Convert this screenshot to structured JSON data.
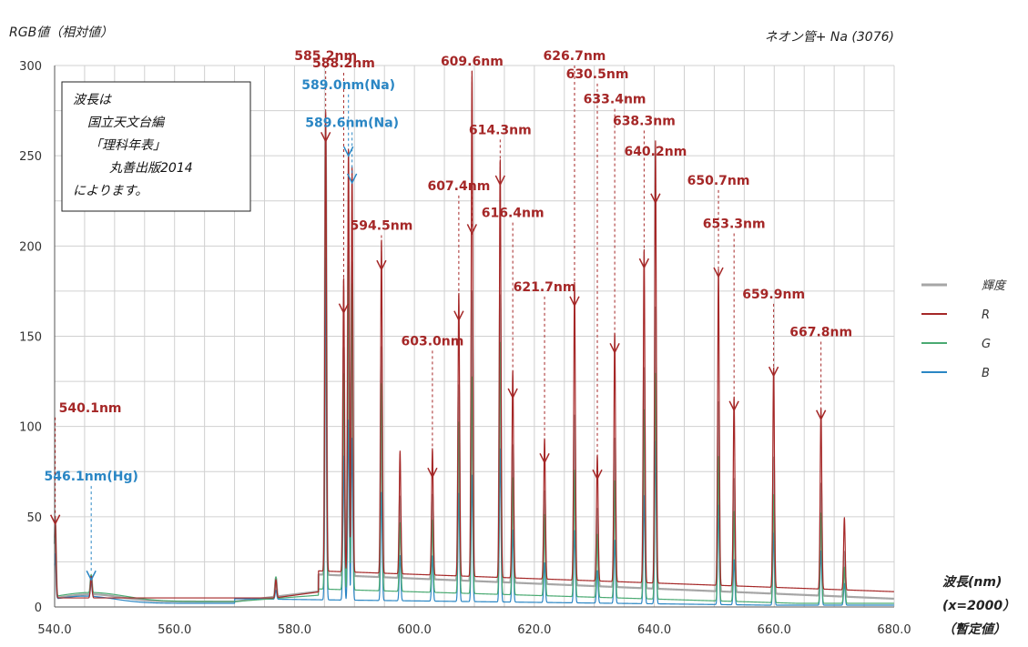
{
  "chart_data": {
    "type": "line",
    "y_title": "RGB値（相対値）",
    "top_right": "ネオン管+ Na (3076)",
    "xlabel": [
      "波長(nm)",
      "(x=2000）",
      "（暫定値）"
    ],
    "xlim": [
      540,
      680
    ],
    "ylim": [
      0,
      300
    ],
    "x_ticks": [
      "540.0",
      "560.0",
      "580.0",
      "600.0",
      "620.0",
      "640.0",
      "660.0",
      "680.0"
    ],
    "y_ticks": [
      "0",
      "50",
      "100",
      "150",
      "200",
      "250",
      "300"
    ],
    "grid": true,
    "legend_position": "right",
    "note": [
      "波長は",
      "国立天文台編",
      "「理科年表」",
      "丸善出版2014",
      "によります。"
    ],
    "series": [
      {
        "name": "輝度",
        "color": "#a6a6a6"
      },
      {
        "name": "R",
        "color": "#a52727"
      },
      {
        "name": "G",
        "color": "#4aaa72"
      },
      {
        "name": "B",
        "color": "#2a86c4"
      }
    ],
    "peaks": [
      {
        "x": 540.1,
        "R": 45,
        "G": 42,
        "B": 25
      },
      {
        "x": 546.1,
        "R": 12,
        "G": 10,
        "B": 8
      },
      {
        "x": 576.9,
        "R": 10,
        "G": 12,
        "B": 5
      },
      {
        "x": 585.2,
        "R": 255,
        "G": 250,
        "B": 190
      },
      {
        "x": 588.2,
        "R": 163,
        "G": 120,
        "B": 80
      },
      {
        "x": 589.0,
        "R": 235,
        "G": 180,
        "B": 100
      },
      {
        "x": 589.6,
        "R": 225,
        "G": 170,
        "B": 90
      },
      {
        "x": 594.5,
        "R": 185,
        "G": 115,
        "B": 60
      },
      {
        "x": 597.6,
        "R": 68,
        "G": 38,
        "B": 25
      },
      {
        "x": 603.0,
        "R": 70,
        "G": 40,
        "B": 25
      },
      {
        "x": 607.4,
        "R": 157,
        "G": 95,
        "B": 60
      },
      {
        "x": 609.6,
        "R": 280,
        "G": 120,
        "B": 70
      },
      {
        "x": 614.3,
        "R": 232,
        "G": 140,
        "B": 85
      },
      {
        "x": 616.4,
        "R": 115,
        "G": 65,
        "B": 40
      },
      {
        "x": 621.7,
        "R": 78,
        "G": 45,
        "B": 22
      },
      {
        "x": 626.7,
        "R": 165,
        "G": 70,
        "B": 40
      },
      {
        "x": 630.5,
        "R": 70,
        "G": 35,
        "B": 18
      },
      {
        "x": 633.4,
        "R": 138,
        "G": 65,
        "B": 35
      },
      {
        "x": 638.3,
        "R": 185,
        "G": 105,
        "B": 60
      },
      {
        "x": 640.2,
        "R": 245,
        "G": 125,
        "B": 90
      },
      {
        "x": 650.7,
        "R": 175,
        "G": 80,
        "B": 55
      },
      {
        "x": 653.3,
        "R": 105,
        "G": 50,
        "B": 25
      },
      {
        "x": 659.9,
        "R": 122,
        "G": 60,
        "B": 40
      },
      {
        "x": 667.8,
        "R": 100,
        "G": 50,
        "B": 30
      },
      {
        "x": 671.7,
        "R": 40,
        "G": 20,
        "B": 12
      }
    ],
    "annotations": [
      {
        "text": "540.1nm",
        "x": 540.1,
        "label_y": 108,
        "tip_y": 46,
        "color": "red"
      },
      {
        "text": "546.1nm(Hg)",
        "x": 546.1,
        "label_y": 70,
        "tip_y": 15,
        "color": "blue"
      },
      {
        "text": "585.2nm",
        "x": 585.2,
        "label_y": 303,
        "tip_y": 258,
        "color": "red"
      },
      {
        "text": "588.2nm",
        "x": 588.2,
        "label_y": 299,
        "tip_y": 163,
        "color": "red"
      },
      {
        "text": "589.0nm(Na)",
        "x": 589.0,
        "label_y": 287,
        "tip_y": 250,
        "color": "blue"
      },
      {
        "text": "589.6nm(Na)",
        "x": 589.6,
        "label_y": 266,
        "tip_y": 235,
        "color": "blue"
      },
      {
        "text": "594.5nm",
        "x": 594.5,
        "label_y": 209,
        "tip_y": 187,
        "color": "red"
      },
      {
        "text": "603.0nm",
        "x": 603.0,
        "label_y": 145,
        "tip_y": 72,
        "color": "red"
      },
      {
        "text": "607.4nm",
        "x": 607.4,
        "label_y": 231,
        "tip_y": 159,
        "color": "red"
      },
      {
        "text": "609.6nm",
        "x": 609.6,
        "label_y": 300,
        "tip_y": 207,
        "color": "red"
      },
      {
        "text": "614.3nm",
        "x": 614.3,
        "label_y": 262,
        "tip_y": 234,
        "color": "red"
      },
      {
        "text": "616.4nm",
        "x": 616.4,
        "label_y": 216,
        "tip_y": 116,
        "color": "red"
      },
      {
        "text": "621.7nm",
        "x": 621.7,
        "label_y": 175,
        "tip_y": 80,
        "color": "red"
      },
      {
        "text": "626.7nm",
        "x": 626.7,
        "label_y": 303,
        "tip_y": 167,
        "color": "red"
      },
      {
        "text": "630.5nm",
        "x": 630.5,
        "label_y": 293,
        "tip_y": 71,
        "color": "red"
      },
      {
        "text": "633.4nm",
        "x": 633.4,
        "label_y": 279,
        "tip_y": 141,
        "color": "red"
      },
      {
        "text": "638.3nm",
        "x": 638.3,
        "label_y": 267,
        "tip_y": 188,
        "color": "red"
      },
      {
        "text": "640.2nm",
        "x": 640.2,
        "label_y": 250,
        "tip_y": 224,
        "color": "red"
      },
      {
        "text": "650.7nm",
        "x": 650.7,
        "label_y": 234,
        "tip_y": 183,
        "color": "red"
      },
      {
        "text": "653.3nm",
        "x": 653.3,
        "label_y": 210,
        "tip_y": 109,
        "color": "red"
      },
      {
        "text": "659.9nm",
        "x": 659.9,
        "label_y": 171,
        "tip_y": 128,
        "color": "red"
      },
      {
        "text": "667.8nm",
        "x": 667.8,
        "label_y": 150,
        "tip_y": 104,
        "color": "red"
      }
    ]
  }
}
